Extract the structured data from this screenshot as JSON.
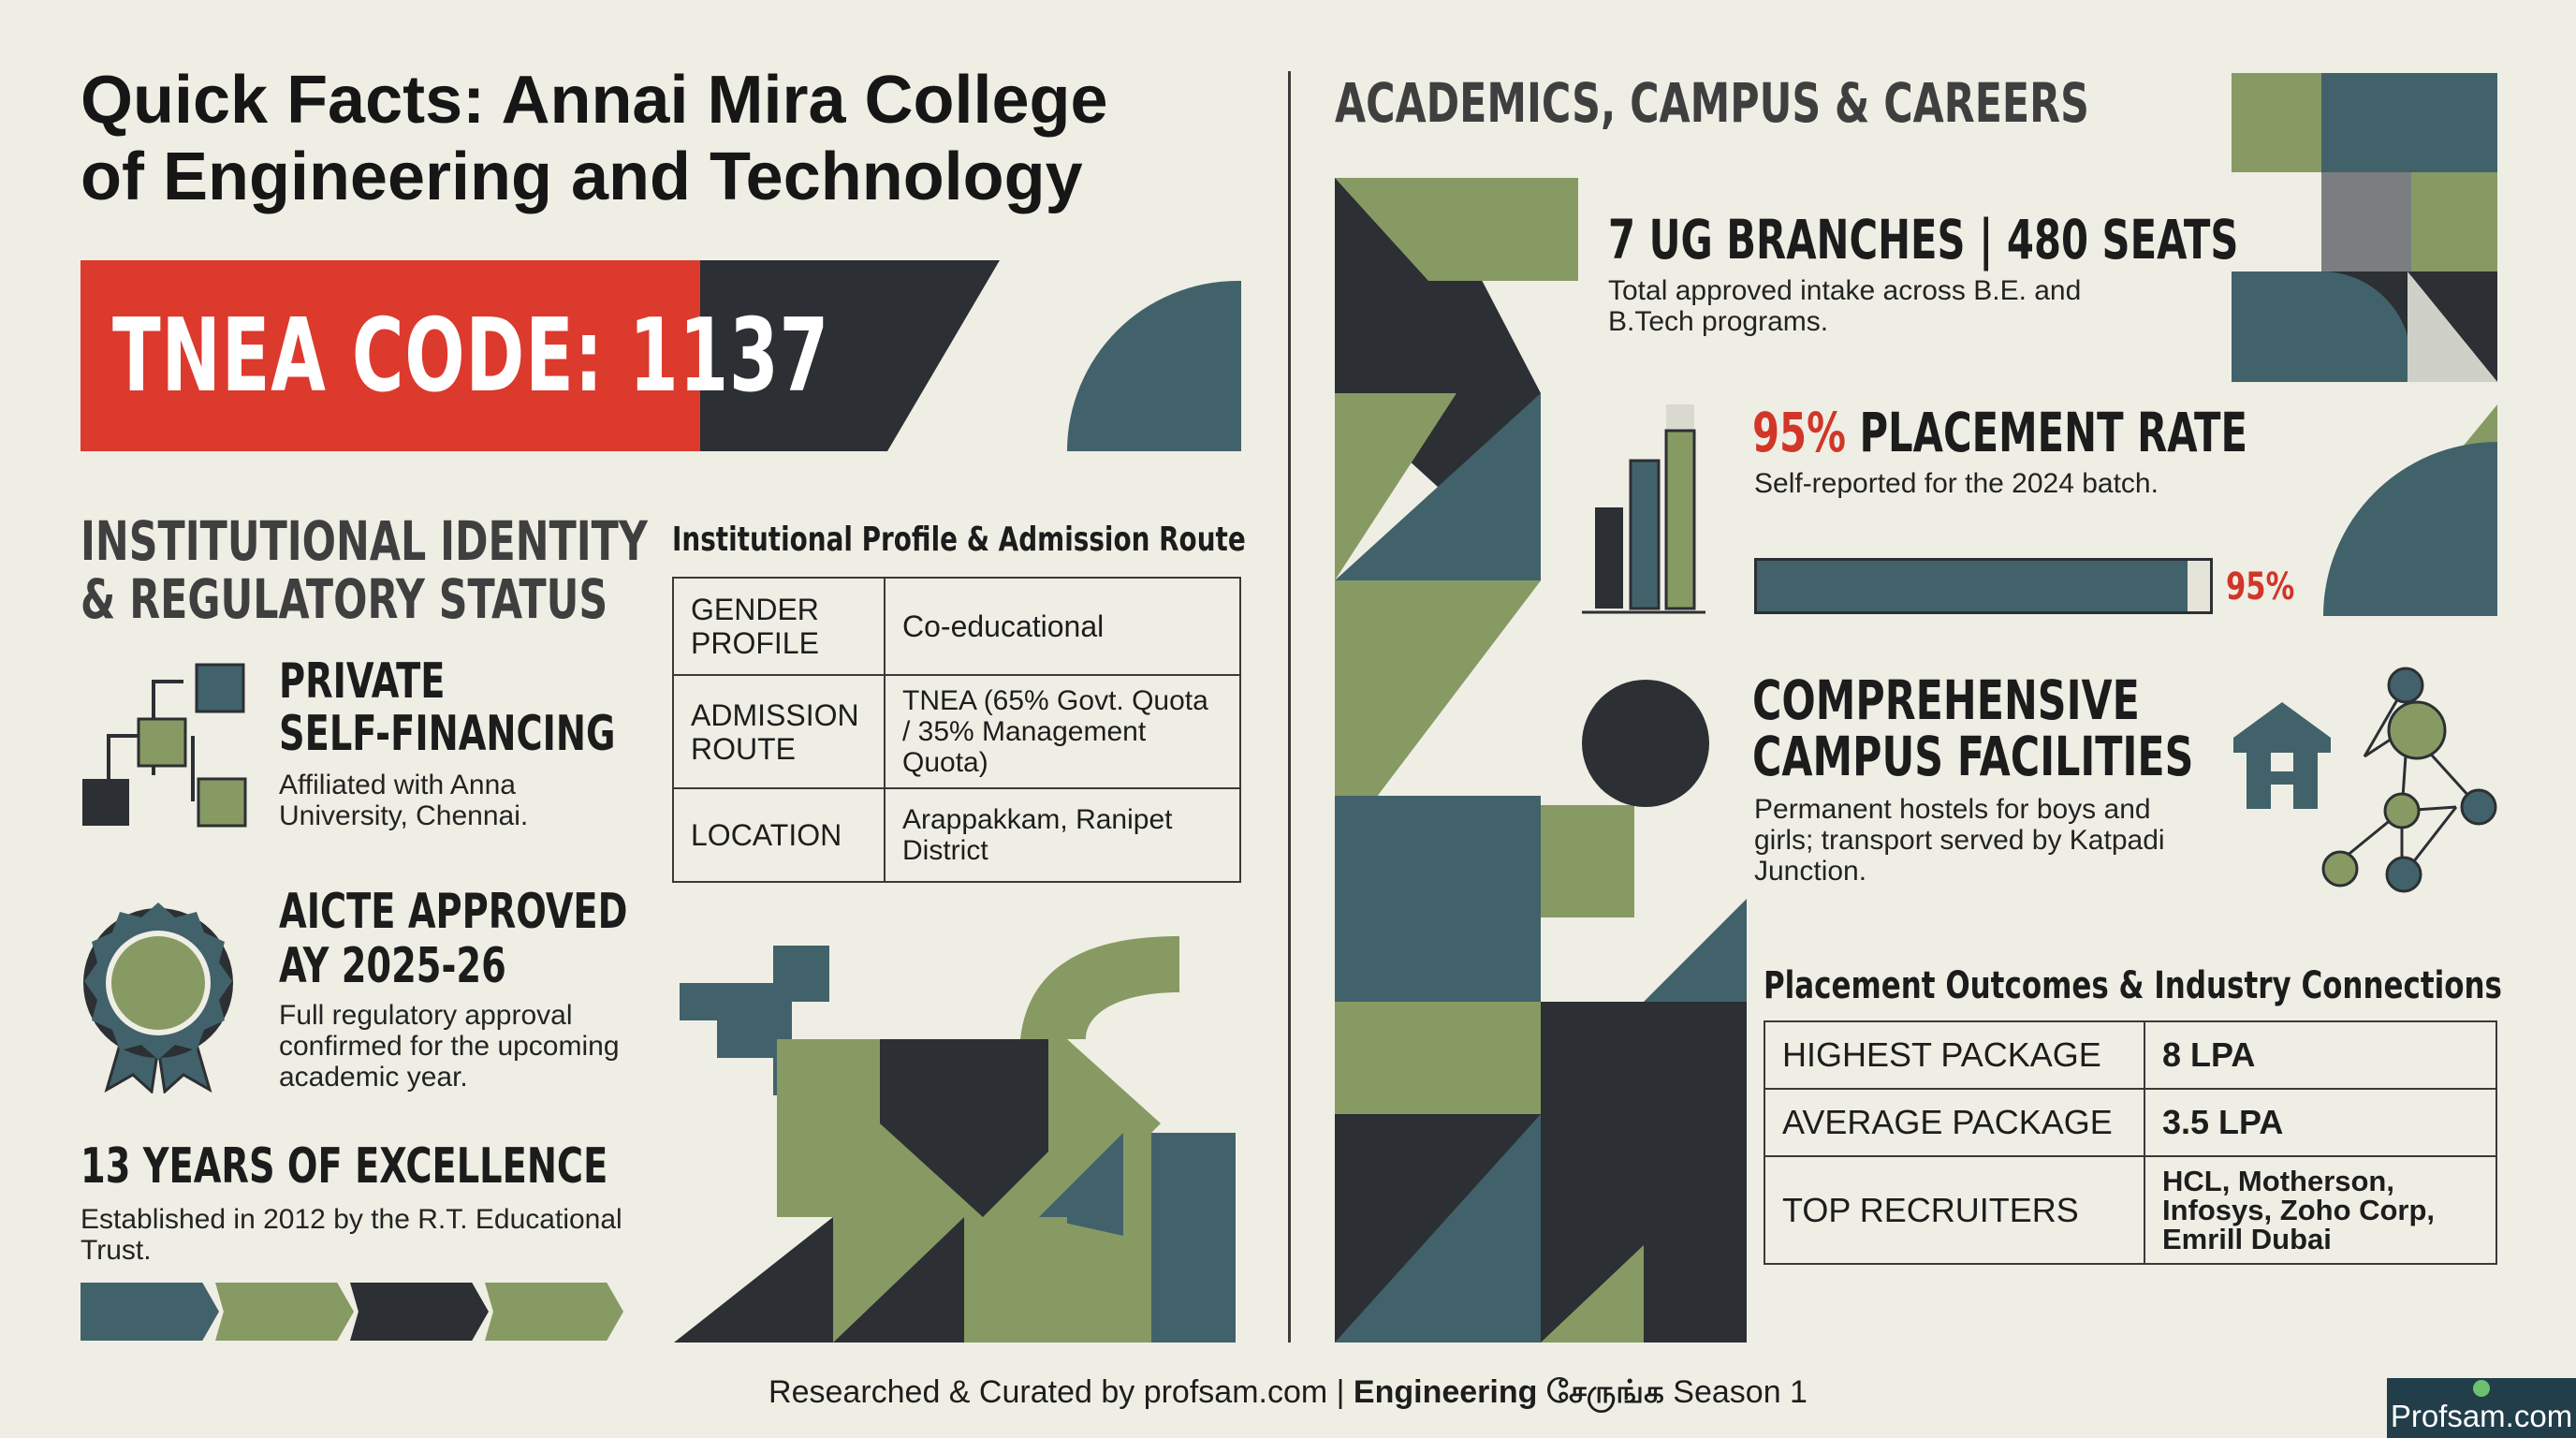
{
  "title": "Quick Facts: Annai Mira College of Engineering and Technology",
  "tnea_code": "TNEA CODE: 1137",
  "left": {
    "section_heading_line1": "INSTITUTIONAL IDENTITY",
    "section_heading_line2": "& REGULATORY STATUS",
    "private": {
      "heading_line1": "PRIVATE",
      "heading_line2": "SELF-FINANCING",
      "description": "Affiliated with Anna University, Chennai."
    },
    "aicte": {
      "heading_line1": "AICTE APPROVED",
      "heading_line2": "AY 2025-26",
      "description": "Full regulatory approval confirmed for the upcoming academic year."
    },
    "excellence": {
      "heading": "13 YEARS OF EXCELLENCE",
      "description": "Established in 2012 by the R.T. Educational Trust."
    }
  },
  "profile_table": {
    "caption": "Institutional Profile & Admission Route",
    "rows": [
      {
        "label": "GENDER PROFILE",
        "value": "Co-educational"
      },
      {
        "label": "ADMISSION ROUTE",
        "value": "TNEA (65% Govt. Quota / 35% Management Quota)"
      },
      {
        "label": "LOCATION",
        "value": "Arappakkam, Ranipet District"
      }
    ]
  },
  "right": {
    "section_heading": "ACADEMICS, CAMPUS & CAREERS",
    "branches": {
      "heading": "7 UG BRANCHES | 480 SEATS",
      "description": "Total approved intake across B.E. and B.Tech programs."
    },
    "placement": {
      "heading_pct": "95%",
      "heading_rest": " PLACEMENT RATE",
      "description": "Self-reported for the 2024 batch.",
      "progress_value": 95,
      "progress_label": "95%"
    },
    "facilities": {
      "heading_line1": "COMPREHENSIVE",
      "heading_line2": "CAMPUS FACILITIES",
      "description": "Permanent hostels for boys and girls; transport served by Katpadi Junction."
    }
  },
  "placement_table": {
    "caption": "Placement Outcomes & Industry Connections",
    "rows": [
      {
        "label": "HIGHEST PACKAGE",
        "value": "8 LPA"
      },
      {
        "label": "AVERAGE PACKAGE",
        "value": "3.5 LPA"
      },
      {
        "label": "TOP RECRUITERS",
        "value": "HCL, Motherson, Infosys, Zoho Corp, Emrill Dubai"
      }
    ]
  },
  "footer": {
    "prefix": "Researched & Curated by profsam.com | ",
    "bold": "Engineering சேருங்க",
    "suffix": " Season 1"
  },
  "brand_badge": "Profsam.com",
  "colors": {
    "teal": "#41626a",
    "olive": "#879a63",
    "dark": "#2c2f33",
    "red": "#dc3a2d",
    "background": "#efeee4"
  }
}
